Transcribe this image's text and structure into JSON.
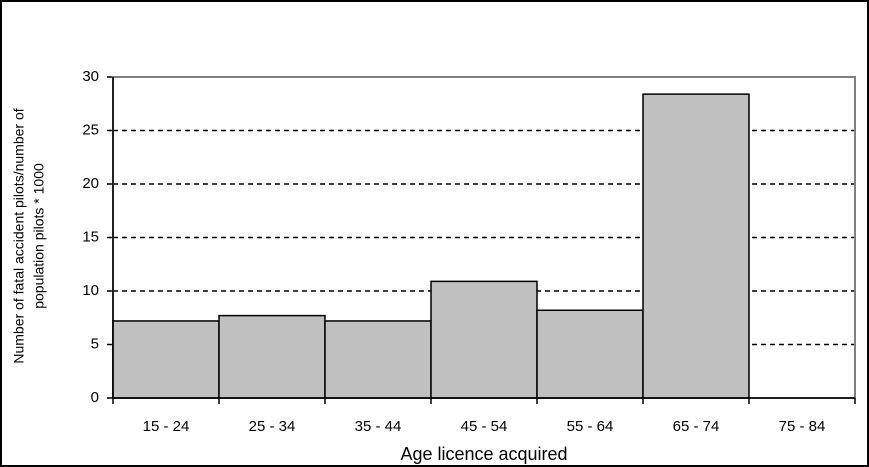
{
  "chart_data": {
    "type": "bar",
    "ylabel": [
      "Number of fatal accident pilots/number of",
      "population pilots * 1000"
    ],
    "xlabel": "Age licence acquired",
    "categories": [
      "15 - 24",
      "25 - 34",
      "35 - 44",
      "45 - 54",
      "55 - 64",
      "65 - 74",
      "75 - 84"
    ],
    "values": [
      7.2,
      7.7,
      7.2,
      10.9,
      8.2,
      28.4,
      null
    ],
    "color": "#c0c0c0",
    "ylim": [
      0,
      30
    ],
    "yticks": [
      0,
      5,
      10,
      15,
      20,
      25,
      30
    ],
    "grid": true
  }
}
